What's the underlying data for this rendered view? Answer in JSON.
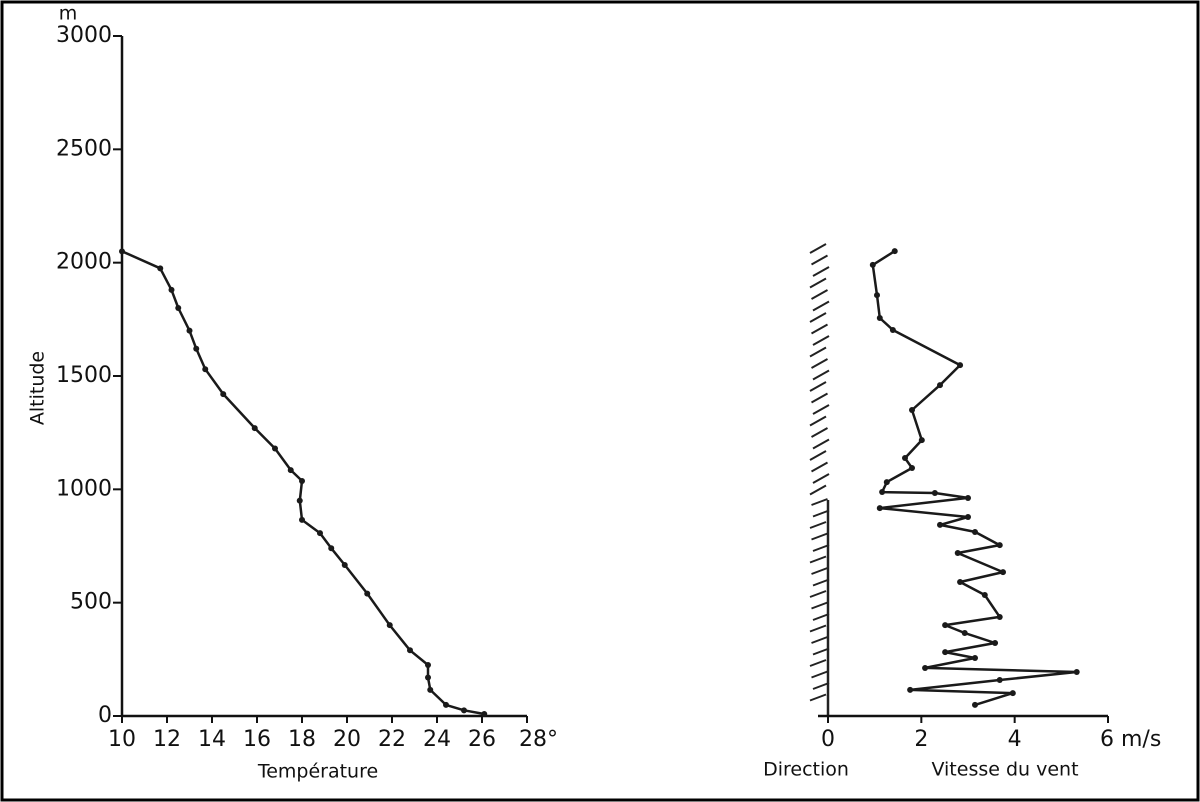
{
  "chart_data": [
    {
      "type": "line",
      "ylabel": "Altitude",
      "y_unit": "m",
      "xlabel": "Température",
      "x": [
        10,
        11.7,
        12.2,
        12.5,
        13.0,
        13.3,
        13.7,
        14.5,
        15.9,
        16.8,
        17.5,
        18.0,
        17.9,
        18.0,
        18.8,
        19.3,
        19.9,
        20.9,
        21.9,
        22.8,
        23.6,
        23.6,
        23.7,
        24.4,
        25.2,
        26.1
      ],
      "values": [
        2050,
        1975,
        1880,
        1800,
        1700,
        1620,
        1530,
        1420,
        1270,
        1180,
        1085,
        1037,
        950,
        865,
        807,
        740,
        666,
        540,
        401,
        290,
        225,
        170,
        115,
        49,
        25,
        9
      ],
      "xlim": [
        10,
        28
      ],
      "ylim": [
        0,
        3000
      ],
      "xticks": [
        10,
        12,
        14,
        16,
        18,
        20,
        22,
        24,
        26,
        {
          "value": 28,
          "label": "28°"
        }
      ],
      "yticks": [
        0,
        500,
        1000,
        1500,
        2000,
        2500,
        3000
      ],
      "color": "#1a1a1a"
    },
    {
      "type": "line",
      "xlabel": "Vitesse du vent",
      "direction_label": "Direction",
      "x": [
        1.43,
        0.96,
        1.05,
        1.11,
        1.39,
        2.83,
        2.4,
        1.8,
        2.01,
        1.65,
        1.8,
        1.26,
        1.16,
        2.29,
        3.0,
        1.11,
        3.0,
        2.4,
        3.15,
        3.68,
        2.78,
        3.75,
        2.83,
        3.36,
        3.68,
        2.51,
        2.93,
        3.58,
        2.51,
        3.15,
        2.08,
        5.33,
        3.68,
        1.76,
        3.96,
        3.15
      ],
      "values": [
        2051,
        1990,
        1857,
        1756,
        1703,
        1548,
        1460,
        1350,
        1217,
        1138,
        1094,
        1032,
        988,
        984,
        962,
        917,
        878,
        843,
        812,
        754,
        719,
        635,
        591,
        534,
        437,
        401,
        366,
        322,
        282,
        256,
        212,
        194,
        159,
        115,
        101,
        49
      ],
      "xlim": [
        0,
        6
      ],
      "ylim": [
        0,
        3000
      ],
      "xticks": [
        0,
        2,
        4,
        {
          "value": 6,
          "label": "6 m/s"
        }
      ],
      "color": "#1a1a1a"
    }
  ]
}
